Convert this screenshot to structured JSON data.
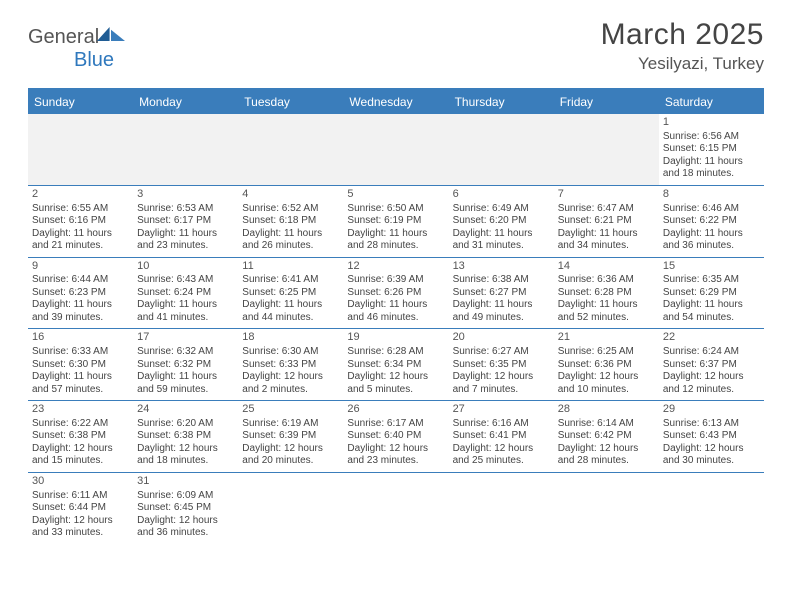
{
  "logo": {
    "text1": "General",
    "text2": "Blue"
  },
  "title": "March 2025",
  "subtitle": "Yesilyazi, Turkey",
  "colors": {
    "header_bg": "#3a7dbb",
    "header_text": "#ffffff",
    "rule": "#3a7dbb",
    "blank_bg": "#f2f2f2",
    "body_text": "#444444"
  },
  "weekdays": [
    "Sunday",
    "Monday",
    "Tuesday",
    "Wednesday",
    "Thursday",
    "Friday",
    "Saturday"
  ],
  "weeks": [
    [
      null,
      null,
      null,
      null,
      null,
      null,
      {
        "n": "1",
        "sunrise": "Sunrise: 6:56 AM",
        "sunset": "Sunset: 6:15 PM",
        "daylight": "Daylight: 11 hours and 18 minutes."
      }
    ],
    [
      {
        "n": "2",
        "sunrise": "Sunrise: 6:55 AM",
        "sunset": "Sunset: 6:16 PM",
        "daylight": "Daylight: 11 hours and 21 minutes."
      },
      {
        "n": "3",
        "sunrise": "Sunrise: 6:53 AM",
        "sunset": "Sunset: 6:17 PM",
        "daylight": "Daylight: 11 hours and 23 minutes."
      },
      {
        "n": "4",
        "sunrise": "Sunrise: 6:52 AM",
        "sunset": "Sunset: 6:18 PM",
        "daylight": "Daylight: 11 hours and 26 minutes."
      },
      {
        "n": "5",
        "sunrise": "Sunrise: 6:50 AM",
        "sunset": "Sunset: 6:19 PM",
        "daylight": "Daylight: 11 hours and 28 minutes."
      },
      {
        "n": "6",
        "sunrise": "Sunrise: 6:49 AM",
        "sunset": "Sunset: 6:20 PM",
        "daylight": "Daylight: 11 hours and 31 minutes."
      },
      {
        "n": "7",
        "sunrise": "Sunrise: 6:47 AM",
        "sunset": "Sunset: 6:21 PM",
        "daylight": "Daylight: 11 hours and 34 minutes."
      },
      {
        "n": "8",
        "sunrise": "Sunrise: 6:46 AM",
        "sunset": "Sunset: 6:22 PM",
        "daylight": "Daylight: 11 hours and 36 minutes."
      }
    ],
    [
      {
        "n": "9",
        "sunrise": "Sunrise: 6:44 AM",
        "sunset": "Sunset: 6:23 PM",
        "daylight": "Daylight: 11 hours and 39 minutes."
      },
      {
        "n": "10",
        "sunrise": "Sunrise: 6:43 AM",
        "sunset": "Sunset: 6:24 PM",
        "daylight": "Daylight: 11 hours and 41 minutes."
      },
      {
        "n": "11",
        "sunrise": "Sunrise: 6:41 AM",
        "sunset": "Sunset: 6:25 PM",
        "daylight": "Daylight: 11 hours and 44 minutes."
      },
      {
        "n": "12",
        "sunrise": "Sunrise: 6:39 AM",
        "sunset": "Sunset: 6:26 PM",
        "daylight": "Daylight: 11 hours and 46 minutes."
      },
      {
        "n": "13",
        "sunrise": "Sunrise: 6:38 AM",
        "sunset": "Sunset: 6:27 PM",
        "daylight": "Daylight: 11 hours and 49 minutes."
      },
      {
        "n": "14",
        "sunrise": "Sunrise: 6:36 AM",
        "sunset": "Sunset: 6:28 PM",
        "daylight": "Daylight: 11 hours and 52 minutes."
      },
      {
        "n": "15",
        "sunrise": "Sunrise: 6:35 AM",
        "sunset": "Sunset: 6:29 PM",
        "daylight": "Daylight: 11 hours and 54 minutes."
      }
    ],
    [
      {
        "n": "16",
        "sunrise": "Sunrise: 6:33 AM",
        "sunset": "Sunset: 6:30 PM",
        "daylight": "Daylight: 11 hours and 57 minutes."
      },
      {
        "n": "17",
        "sunrise": "Sunrise: 6:32 AM",
        "sunset": "Sunset: 6:32 PM",
        "daylight": "Daylight: 11 hours and 59 minutes."
      },
      {
        "n": "18",
        "sunrise": "Sunrise: 6:30 AM",
        "sunset": "Sunset: 6:33 PM",
        "daylight": "Daylight: 12 hours and 2 minutes."
      },
      {
        "n": "19",
        "sunrise": "Sunrise: 6:28 AM",
        "sunset": "Sunset: 6:34 PM",
        "daylight": "Daylight: 12 hours and 5 minutes."
      },
      {
        "n": "20",
        "sunrise": "Sunrise: 6:27 AM",
        "sunset": "Sunset: 6:35 PM",
        "daylight": "Daylight: 12 hours and 7 minutes."
      },
      {
        "n": "21",
        "sunrise": "Sunrise: 6:25 AM",
        "sunset": "Sunset: 6:36 PM",
        "daylight": "Daylight: 12 hours and 10 minutes."
      },
      {
        "n": "22",
        "sunrise": "Sunrise: 6:24 AM",
        "sunset": "Sunset: 6:37 PM",
        "daylight": "Daylight: 12 hours and 12 minutes."
      }
    ],
    [
      {
        "n": "23",
        "sunrise": "Sunrise: 6:22 AM",
        "sunset": "Sunset: 6:38 PM",
        "daylight": "Daylight: 12 hours and 15 minutes."
      },
      {
        "n": "24",
        "sunrise": "Sunrise: 6:20 AM",
        "sunset": "Sunset: 6:38 PM",
        "daylight": "Daylight: 12 hours and 18 minutes."
      },
      {
        "n": "25",
        "sunrise": "Sunrise: 6:19 AM",
        "sunset": "Sunset: 6:39 PM",
        "daylight": "Daylight: 12 hours and 20 minutes."
      },
      {
        "n": "26",
        "sunrise": "Sunrise: 6:17 AM",
        "sunset": "Sunset: 6:40 PM",
        "daylight": "Daylight: 12 hours and 23 minutes."
      },
      {
        "n": "27",
        "sunrise": "Sunrise: 6:16 AM",
        "sunset": "Sunset: 6:41 PM",
        "daylight": "Daylight: 12 hours and 25 minutes."
      },
      {
        "n": "28",
        "sunrise": "Sunrise: 6:14 AM",
        "sunset": "Sunset: 6:42 PM",
        "daylight": "Daylight: 12 hours and 28 minutes."
      },
      {
        "n": "29",
        "sunrise": "Sunrise: 6:13 AM",
        "sunset": "Sunset: 6:43 PM",
        "daylight": "Daylight: 12 hours and 30 minutes."
      }
    ],
    [
      {
        "n": "30",
        "sunrise": "Sunrise: 6:11 AM",
        "sunset": "Sunset: 6:44 PM",
        "daylight": "Daylight: 12 hours and 33 minutes."
      },
      {
        "n": "31",
        "sunrise": "Sunrise: 6:09 AM",
        "sunset": "Sunset: 6:45 PM",
        "daylight": "Daylight: 12 hours and 36 minutes."
      },
      null,
      null,
      null,
      null,
      null
    ]
  ]
}
